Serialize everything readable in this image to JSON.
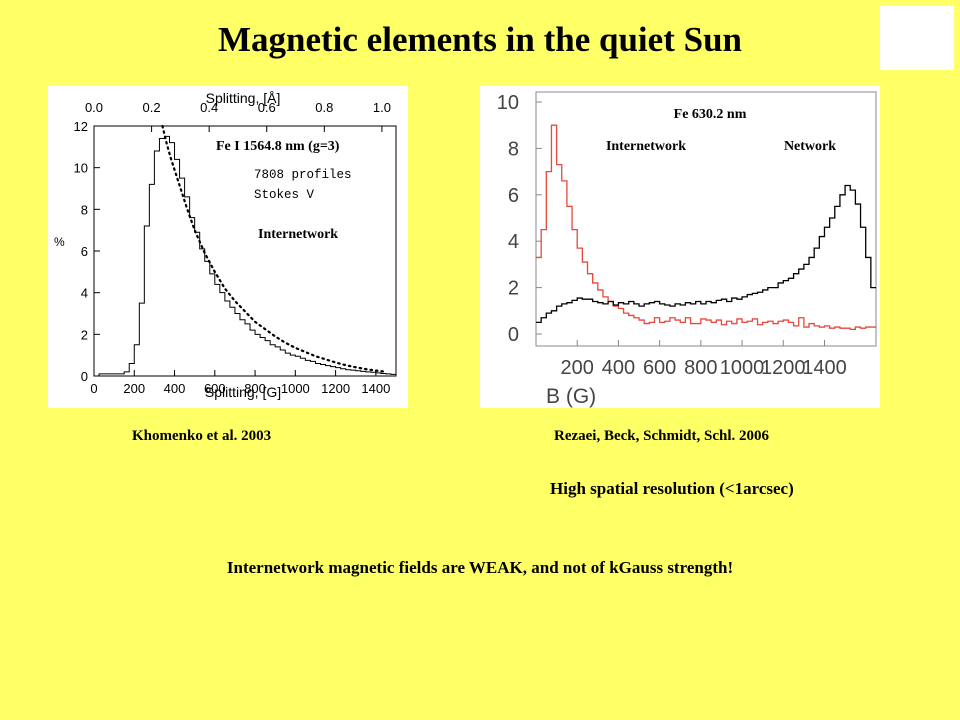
{
  "slide": {
    "title": "Magnetic elements in the quiet Sun",
    "ref_left": "Khomenko et al. 2003",
    "ref_right": "Rezaei, Beck, Schmidt, Schl. 2006",
    "note_resolution": "High spatial resolution (<1arcsec)",
    "conclusion": "Internetwork magnetic fields are WEAK, and not of kGauss strength!"
  },
  "chart_data": [
    {
      "type": "line",
      "title": "",
      "xlabel": "Splitting, [G]",
      "top_axis_label": "Splitting, [Å]",
      "ylabel": "%",
      "xlim": [
        0,
        1500
      ],
      "ylim": [
        0,
        12
      ],
      "x_ticks": [
        "0",
        "200",
        "400",
        "600",
        "800",
        "1000",
        "1200",
        "1400"
      ],
      "x_tick_values": [
        0,
        200,
        400,
        600,
        800,
        1000,
        1200,
        1400
      ],
      "top_ticks": [
        "0.0",
        "0.2",
        "0.4",
        "0.6",
        "0.8",
        "1.0"
      ],
      "top_tick_values": [
        0,
        286,
        572,
        858,
        1144,
        1430
      ],
      "y_ticks": [
        "0",
        "2",
        "4",
        "6",
        "8",
        "10",
        "12"
      ],
      "y_tick_values": [
        0,
        2,
        4,
        6,
        8,
        10,
        12
      ],
      "annotations": {
        "line": "Fe I 1564.8 nm (g=3)",
        "profiles": "7808 profiles",
        "stokes": "Stokes V",
        "region": "Internetwork"
      },
      "series": [
        {
          "style": "histogram",
          "bin_width": 25,
          "x": [
            0,
            25,
            50,
            75,
            100,
            125,
            150,
            175,
            200,
            225,
            250,
            275,
            300,
            325,
            350,
            375,
            400,
            425,
            450,
            475,
            500,
            525,
            550,
            575,
            600,
            625,
            650,
            675,
            700,
            725,
            750,
            775,
            800,
            825,
            850,
            875,
            900,
            925,
            950,
            975,
            1000,
            1025,
            1050,
            1075,
            1100,
            1125,
            1150,
            1175,
            1200,
            1225,
            1250,
            1275,
            1300,
            1325,
            1350,
            1375,
            1400,
            1425,
            1450,
            1475
          ],
          "values": [
            0,
            0.1,
            0.1,
            0.1,
            0.1,
            0.1,
            0.2,
            0.6,
            1.5,
            3.5,
            7.2,
            9.2,
            10.8,
            11.4,
            11.5,
            11.2,
            10.4,
            9.5,
            8.6,
            7.6,
            6.9,
            6.1,
            5.5,
            4.9,
            4.4,
            4.0,
            3.6,
            3.3,
            3.0,
            2.7,
            2.5,
            2.2,
            2.0,
            1.85,
            1.7,
            1.5,
            1.4,
            1.25,
            1.1,
            1.0,
            0.95,
            0.85,
            0.75,
            0.7,
            0.6,
            0.55,
            0.5,
            0.45,
            0.4,
            0.35,
            0.3,
            0.28,
            0.25,
            0.22,
            0.2,
            0.18,
            0.15,
            0.12,
            0.1,
            0.08
          ]
        },
        {
          "style": "dotted",
          "x": [
            340,
            360,
            380,
            400,
            430,
            460,
            500,
            550,
            600,
            650,
            700,
            750,
            800,
            850,
            900,
            950,
            1000,
            1050,
            1100,
            1150,
            1200,
            1250,
            1300,
            1350,
            1400,
            1450
          ],
          "values": [
            12,
            11.2,
            10.5,
            9.9,
            9.0,
            8.1,
            7.0,
            5.9,
            5.0,
            4.2,
            3.6,
            3.1,
            2.6,
            2.25,
            1.9,
            1.6,
            1.35,
            1.15,
            0.95,
            0.8,
            0.65,
            0.52,
            0.42,
            0.33,
            0.26,
            0.2
          ]
        }
      ]
    },
    {
      "type": "line",
      "title": "Fe 630.2 nm",
      "xlabel": "B (G)",
      "ylabel": "",
      "xlim": [
        0,
        1650
      ],
      "ylim": [
        0,
        10
      ],
      "x_ticks": [
        "200",
        "400",
        "600",
        "800",
        "1000",
        "1200",
        "1400"
      ],
      "x_tick_values": [
        200,
        400,
        600,
        800,
        1000,
        1200,
        1400
      ],
      "y_ticks": [
        "0",
        "2",
        "4",
        "6",
        "8",
        "10"
      ],
      "y_tick_values": [
        0,
        2,
        4,
        6,
        8,
        10
      ],
      "labels": [
        "Internetwork",
        "Network"
      ],
      "series": [
        {
          "name": "Internetwork",
          "color": "#e8473b",
          "style": "histogram",
          "bin_width": 25,
          "x": [
            0,
            25,
            50,
            75,
            100,
            125,
            150,
            175,
            200,
            225,
            250,
            275,
            300,
            325,
            350,
            375,
            400,
            425,
            450,
            475,
            500,
            525,
            550,
            575,
            600,
            625,
            650,
            675,
            700,
            725,
            750,
            775,
            800,
            825,
            850,
            875,
            900,
            925,
            950,
            975,
            1000,
            1025,
            1050,
            1075,
            1100,
            1125,
            1150,
            1175,
            1200,
            1225,
            1250,
            1275,
            1300,
            1325,
            1350,
            1375,
            1400,
            1425,
            1450,
            1475,
            1500,
            1525,
            1550,
            1575,
            1600,
            1625
          ],
          "values": [
            3.3,
            4.5,
            7.0,
            9.0,
            7.3,
            6.6,
            5.5,
            4.5,
            3.7,
            3.1,
            2.6,
            2.2,
            1.9,
            1.6,
            1.4,
            1.2,
            1.1,
            0.9,
            0.8,
            0.7,
            0.6,
            0.45,
            0.5,
            0.7,
            0.5,
            0.55,
            0.7,
            0.6,
            0.5,
            0.7,
            0.45,
            0.45,
            0.65,
            0.6,
            0.5,
            0.6,
            0.4,
            0.55,
            0.45,
            0.65,
            0.5,
            0.55,
            0.65,
            0.4,
            0.5,
            0.55,
            0.45,
            0.55,
            0.6,
            0.5,
            0.35,
            0.7,
            0.3,
            0.45,
            0.35,
            0.3,
            0.35,
            0.25,
            0.3,
            0.25,
            0.25,
            0.2,
            0.3,
            0.25,
            0.3,
            0.3
          ]
        },
        {
          "name": "Network",
          "color": "#000000",
          "style": "histogram",
          "bin_width": 25,
          "x": [
            0,
            25,
            50,
            75,
            100,
            125,
            150,
            175,
            200,
            225,
            250,
            275,
            300,
            325,
            350,
            375,
            400,
            425,
            450,
            475,
            500,
            525,
            550,
            575,
            600,
            625,
            650,
            675,
            700,
            725,
            750,
            775,
            800,
            825,
            850,
            875,
            900,
            925,
            950,
            975,
            1000,
            1025,
            1050,
            1075,
            1100,
            1125,
            1150,
            1175,
            1200,
            1225,
            1250,
            1275,
            1300,
            1325,
            1350,
            1375,
            1400,
            1425,
            1450,
            1475,
            1500,
            1525,
            1550,
            1575,
            1600,
            1625
          ],
          "values": [
            0.5,
            0.7,
            0.9,
            1.0,
            1.2,
            1.3,
            1.35,
            1.45,
            1.55,
            1.5,
            1.5,
            1.4,
            1.35,
            1.3,
            1.4,
            1.25,
            1.35,
            1.3,
            1.4,
            1.3,
            1.2,
            1.3,
            1.35,
            1.4,
            1.3,
            1.25,
            1.2,
            1.3,
            1.25,
            1.35,
            1.3,
            1.4,
            1.3,
            1.4,
            1.35,
            1.45,
            1.5,
            1.4,
            1.55,
            1.5,
            1.6,
            1.7,
            1.75,
            1.8,
            1.9,
            2.0,
            2.0,
            2.2,
            2.3,
            2.4,
            2.6,
            2.8,
            3.0,
            3.3,
            3.7,
            4.2,
            4.6,
            5.0,
            5.5,
            6.0,
            6.4,
            6.2,
            5.6,
            4.6,
            3.3,
            2.0
          ]
        }
      ]
    }
  ]
}
